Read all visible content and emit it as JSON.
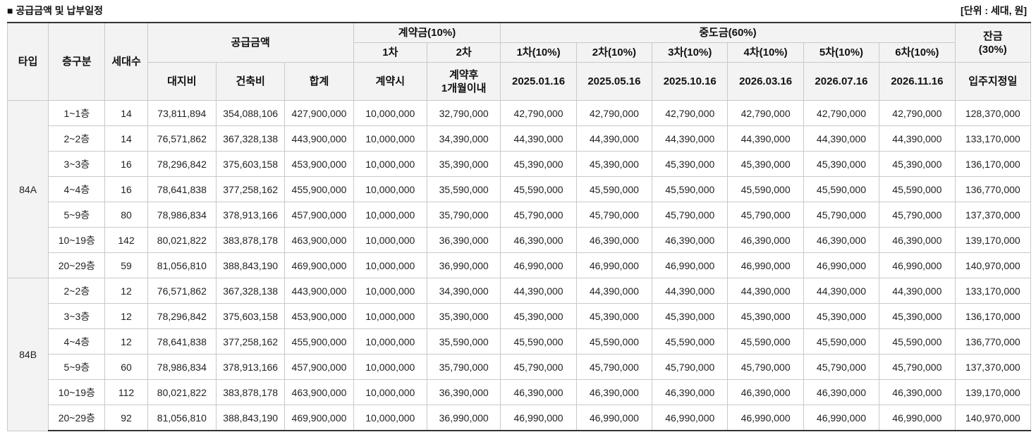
{
  "title": "■ 공급금액 및 납부일정",
  "unit": "[단위 : 세대, 원]",
  "headers": {
    "type": "타입",
    "floor": "층구분",
    "households": "세대수",
    "supply": "공급금액",
    "land": "대지비",
    "building": "건축비",
    "total": "합계",
    "deposit": "계약금(10%)",
    "dep1": "1차",
    "dep2": "2차",
    "dep1_when": "계약시",
    "dep2_when": "계약후\n1개월이내",
    "interim": "중도금(60%)",
    "interim_rounds": [
      "1차(10%)",
      "2차(10%)",
      "3차(10%)",
      "4차(10%)",
      "5차(10%)",
      "6차(10%)"
    ],
    "interim_dates": [
      "2025.01.16",
      "2025.05.16",
      "2025.10.16",
      "2026.03.16",
      "2026.07.16",
      "2026.11.16"
    ],
    "balance": "잔금\n(30%)",
    "balance_when": "입주지정일"
  },
  "groups": [
    {
      "type": "84A",
      "rows": [
        {
          "floor": "1~1층",
          "count": "14",
          "land": "73,811,894",
          "building": "354,088,106",
          "total": "427,900,000",
          "dep1": "10,000,000",
          "dep2": "32,790,000",
          "interim": [
            "42,790,000",
            "42,790,000",
            "42,790,000",
            "42,790,000",
            "42,790,000",
            "42,790,000"
          ],
          "balance": "128,370,000"
        },
        {
          "floor": "2~2층",
          "count": "14",
          "land": "76,571,862",
          "building": "367,328,138",
          "total": "443,900,000",
          "dep1": "10,000,000",
          "dep2": "34,390,000",
          "interim": [
            "44,390,000",
            "44,390,000",
            "44,390,000",
            "44,390,000",
            "44,390,000",
            "44,390,000"
          ],
          "balance": "133,170,000"
        },
        {
          "floor": "3~3층",
          "count": "16",
          "land": "78,296,842",
          "building": "375,603,158",
          "total": "453,900,000",
          "dep1": "10,000,000",
          "dep2": "35,390,000",
          "interim": [
            "45,390,000",
            "45,390,000",
            "45,390,000",
            "45,390,000",
            "45,390,000",
            "45,390,000"
          ],
          "balance": "136,170,000"
        },
        {
          "floor": "4~4층",
          "count": "16",
          "land": "78,641,838",
          "building": "377,258,162",
          "total": "455,900,000",
          "dep1": "10,000,000",
          "dep2": "35,590,000",
          "interim": [
            "45,590,000",
            "45,590,000",
            "45,590,000",
            "45,590,000",
            "45,590,000",
            "45,590,000"
          ],
          "balance": "136,770,000"
        },
        {
          "floor": "5~9층",
          "count": "80",
          "land": "78,986,834",
          "building": "378,913,166",
          "total": "457,900,000",
          "dep1": "10,000,000",
          "dep2": "35,790,000",
          "interim": [
            "45,790,000",
            "45,790,000",
            "45,790,000",
            "45,790,000",
            "45,790,000",
            "45,790,000"
          ],
          "balance": "137,370,000"
        },
        {
          "floor": "10~19층",
          "count": "142",
          "land": "80,021,822",
          "building": "383,878,178",
          "total": "463,900,000",
          "dep1": "10,000,000",
          "dep2": "36,390,000",
          "interim": [
            "46,390,000",
            "46,390,000",
            "46,390,000",
            "46,390,000",
            "46,390,000",
            "46,390,000"
          ],
          "balance": "139,170,000"
        },
        {
          "floor": "20~29층",
          "count": "59",
          "land": "81,056,810",
          "building": "388,843,190",
          "total": "469,900,000",
          "dep1": "10,000,000",
          "dep2": "36,990,000",
          "interim": [
            "46,990,000",
            "46,990,000",
            "46,990,000",
            "46,990,000",
            "46,990,000",
            "46,990,000"
          ],
          "balance": "140,970,000"
        }
      ]
    },
    {
      "type": "84B",
      "rows": [
        {
          "floor": "2~2층",
          "count": "12",
          "land": "76,571,862",
          "building": "367,328,138",
          "total": "443,900,000",
          "dep1": "10,000,000",
          "dep2": "34,390,000",
          "interim": [
            "44,390,000",
            "44,390,000",
            "44,390,000",
            "44,390,000",
            "44,390,000",
            "44,390,000"
          ],
          "balance": "133,170,000"
        },
        {
          "floor": "3~3층",
          "count": "12",
          "land": "78,296,842",
          "building": "375,603,158",
          "total": "453,900,000",
          "dep1": "10,000,000",
          "dep2": "35,390,000",
          "interim": [
            "45,390,000",
            "45,390,000",
            "45,390,000",
            "45,390,000",
            "45,390,000",
            "45,390,000"
          ],
          "balance": "136,170,000"
        },
        {
          "floor": "4~4층",
          "count": "12",
          "land": "78,641,838",
          "building": "377,258,162",
          "total": "455,900,000",
          "dep1": "10,000,000",
          "dep2": "35,590,000",
          "interim": [
            "45,590,000",
            "45,590,000",
            "45,590,000",
            "45,590,000",
            "45,590,000",
            "45,590,000"
          ],
          "balance": "136,770,000"
        },
        {
          "floor": "5~9층",
          "count": "60",
          "land": "78,986,834",
          "building": "378,913,166",
          "total": "457,900,000",
          "dep1": "10,000,000",
          "dep2": "35,790,000",
          "interim": [
            "45,790,000",
            "45,790,000",
            "45,790,000",
            "45,790,000",
            "45,790,000",
            "45,790,000"
          ],
          "balance": "137,370,000"
        },
        {
          "floor": "10~19층",
          "count": "112",
          "land": "80,021,822",
          "building": "383,878,178",
          "total": "463,900,000",
          "dep1": "10,000,000",
          "dep2": "36,390,000",
          "interim": [
            "46,390,000",
            "46,390,000",
            "46,390,000",
            "46,390,000",
            "46,390,000",
            "46,390,000"
          ],
          "balance": "139,170,000"
        },
        {
          "floor": "20~29층",
          "count": "92",
          "land": "81,056,810",
          "building": "388,843,190",
          "total": "469,900,000",
          "dep1": "10,000,000",
          "dep2": "36,990,000",
          "interim": [
            "46,990,000",
            "46,990,000",
            "46,990,000",
            "46,990,000",
            "46,990,000",
            "46,990,000"
          ],
          "balance": "140,970,000"
        }
      ]
    }
  ]
}
